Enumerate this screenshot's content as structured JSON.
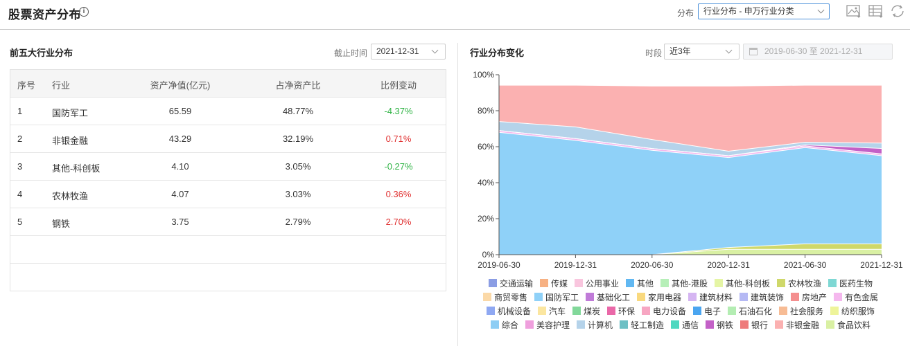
{
  "header": {
    "title": "股票资产分布",
    "info_icon": "i",
    "distribution_label": "分布",
    "distribution_select": "行业分布 - 申万行业分类"
  },
  "left": {
    "title": "前五大行业分布",
    "date_label": "截止时间",
    "date_value": "2021-12-31",
    "columns": [
      "序号",
      "行业",
      "资产净值(亿元)",
      "占净资产比",
      "比例变动"
    ],
    "rows": [
      {
        "idx": "1",
        "name": "国防军工",
        "nav": "65.59",
        "pct": "48.77%",
        "chg": "-4.37%"
      },
      {
        "idx": "2",
        "name": "非银金融",
        "nav": "43.29",
        "pct": "32.19%",
        "chg": "0.71%"
      },
      {
        "idx": "3",
        "name": "其他-科创板",
        "nav": "4.10",
        "pct": "3.05%",
        "chg": "-0.27%"
      },
      {
        "idx": "4",
        "name": "农林牧渔",
        "nav": "4.07",
        "pct": "3.03%",
        "chg": "0.36%"
      },
      {
        "idx": "5",
        "name": "钢铁",
        "nav": "3.75",
        "pct": "2.79%",
        "chg": "2.70%"
      }
    ]
  },
  "right": {
    "title": "行业分布变化",
    "period_label": "时段",
    "period_value": "近3年",
    "range_text": "2019-06-30 至 2021-12-31"
  },
  "chart_data": {
    "type": "area",
    "stacked": true,
    "x": [
      "2019-06-30",
      "2019-12-31",
      "2020-06-30",
      "2020-12-31",
      "2021-06-30",
      "2021-12-31"
    ],
    "ylim": [
      0,
      100
    ],
    "yticks": [
      "0%",
      "20%",
      "40%",
      "60%",
      "80%",
      "100%"
    ],
    "grid": false,
    "legend_position": "bottom",
    "series": [
      {
        "name": "食品饮料",
        "color": "#d9f0a3",
        "values": [
          0,
          0,
          0,
          3,
          3,
          3
        ]
      },
      {
        "name": "农林牧渔",
        "color": "#cfd86a",
        "values": [
          0,
          0,
          0,
          1,
          3,
          3
        ]
      },
      {
        "name": "国防军工",
        "color": "#8fd1f8",
        "values": [
          68,
          63.5,
          58,
          50,
          53.5,
          49
        ]
      },
      {
        "name": "有色金属",
        "color": "#f5b8ee",
        "values": [
          1,
          1,
          1,
          1,
          1,
          1
        ]
      },
      {
        "name": "钢铁",
        "color": "#c361c7",
        "values": [
          0,
          0,
          0,
          0,
          0.5,
          3
        ]
      },
      {
        "name": "计算机",
        "color": "#b5d3ea",
        "values": [
          5,
          6.5,
          5,
          2.5,
          1.5,
          3
        ]
      },
      {
        "name": "非银金融",
        "color": "#fbb1b1",
        "values": [
          20,
          23,
          29.5,
          36,
          31.5,
          32
        ]
      }
    ],
    "legend": [
      {
        "name": "交通运输",
        "color": "#8b9de4"
      },
      {
        "name": "传媒",
        "color": "#f7b183"
      },
      {
        "name": "公用事业",
        "color": "#f9c6de"
      },
      {
        "name": "其他",
        "color": "#61b8f2"
      },
      {
        "name": "其他-港股",
        "color": "#b6efb8"
      },
      {
        "name": "其他-科创板",
        "color": "#e5f5a5"
      },
      {
        "name": "农林牧渔",
        "color": "#cfd86a"
      },
      {
        "name": "医药生物",
        "color": "#7fd8d4"
      },
      {
        "name": "商贸零售",
        "color": "#fbd9a8"
      },
      {
        "name": "国防军工",
        "color": "#8fd1f8"
      },
      {
        "name": "基础化工",
        "color": "#c07bd8"
      },
      {
        "name": "家用电器",
        "color": "#f9d97e"
      },
      {
        "name": "建筑材料",
        "color": "#d5b5f2"
      },
      {
        "name": "建筑装饰",
        "color": "#b5b9f4"
      },
      {
        "name": "房地产",
        "color": "#f48f8f"
      },
      {
        "name": "有色金属",
        "color": "#f5b8ee"
      },
      {
        "name": "机械设备",
        "color": "#8fa8f2"
      },
      {
        "name": "汽车",
        "color": "#fbe6a0"
      },
      {
        "name": "煤炭",
        "color": "#82d89a"
      },
      {
        "name": "环保",
        "color": "#ea68a8"
      },
      {
        "name": "电力设备",
        "color": "#f7a6c2"
      },
      {
        "name": "电子",
        "color": "#4aa5f0"
      },
      {
        "name": "石油石化",
        "color": "#b4edb3"
      },
      {
        "name": "社会服务",
        "color": "#f7bc95"
      },
      {
        "name": "纺织服饰",
        "color": "#eef49a"
      },
      {
        "name": "综合",
        "color": "#8dcdf4"
      },
      {
        "name": "美容护理",
        "color": "#ef9fdd"
      },
      {
        "name": "计算机",
        "color": "#b5d3ea"
      },
      {
        "name": "轻工制造",
        "color": "#6ec0c5"
      },
      {
        "name": "通信",
        "color": "#4fd8c0"
      },
      {
        "name": "钢铁",
        "color": "#c361c7"
      },
      {
        "name": "银行",
        "color": "#ee7b7b"
      },
      {
        "name": "非银金融",
        "color": "#fbb1b1"
      },
      {
        "name": "食品饮料",
        "color": "#d9f0a3"
      }
    ]
  }
}
